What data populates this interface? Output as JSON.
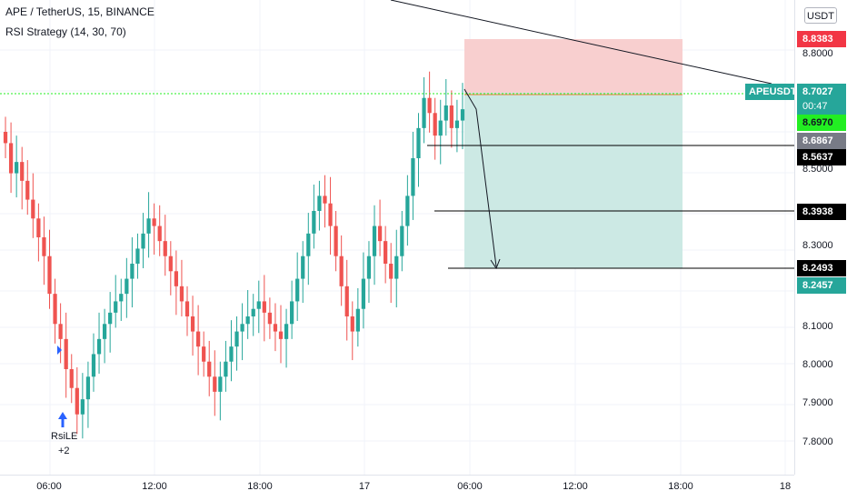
{
  "header": {
    "symbol_line": "APE / TetherUS, 15, BINANCE",
    "strategy_line": "RSI Strategy (14, 30, 70)"
  },
  "currency": "USDT",
  "symbol_badge": "APEUSDT",
  "price_ticks": [
    "8.8000",
    "8.5000",
    "8.3000",
    "8.1000",
    "8.0000",
    "7.9000",
    "7.8000"
  ],
  "price_labels": {
    "stop": {
      "value": "8.8383",
      "color": "#f23645"
    },
    "last": {
      "value": "8.7027",
      "color": "#26a69a"
    },
    "countdown": "00:47",
    "green": {
      "value": "8.6970",
      "color": "#22ee22"
    },
    "gray": {
      "value": "8.6867",
      "color": "#787b86"
    },
    "level1": {
      "value": "8.5637",
      "color": "#000000"
    },
    "level2": {
      "value": "8.3938",
      "color": "#000000"
    },
    "level3": {
      "value": "8.2493",
      "color": "#000000"
    },
    "target": {
      "value": "8.2457",
      "color": "#26a69a"
    }
  },
  "time_ticks": [
    "06:00",
    "12:00",
    "18:00",
    "17",
    "06:00",
    "12:00",
    "18:00",
    "18"
  ],
  "signal": {
    "label": "RsiLE",
    "count": "+2"
  },
  "colors": {
    "up": "#26a69a",
    "down": "#ef5350",
    "stop_zone": "#f8cfcf",
    "target_zone": "#cce9e4"
  },
  "chart_data": {
    "type": "candlestick",
    "title": "APE / TetherUS, 15, BINANCE",
    "ylim": [
      7.72,
      8.98
    ],
    "closes": [
      8.6,
      8.52,
      8.55,
      8.5,
      8.45,
      8.4,
      8.35,
      8.3,
      8.2,
      8.12,
      8.08,
      8.0,
      7.95,
      7.88,
      7.92,
      7.98,
      8.04,
      8.08,
      8.12,
      8.15,
      8.18,
      8.2,
      8.24,
      8.28,
      8.32,
      8.36,
      8.4,
      8.38,
      8.34,
      8.3,
      8.26,
      8.22,
      8.18,
      8.14,
      8.1,
      8.06,
      8.02,
      7.98,
      7.94,
      7.98,
      8.02,
      8.06,
      8.1,
      8.12,
      8.14,
      8.16,
      8.18,
      8.15,
      8.12,
      8.1,
      8.08,
      8.12,
      8.18,
      8.24,
      8.3,
      8.36,
      8.42,
      8.46,
      8.44,
      8.38,
      8.3,
      8.22,
      8.14,
      8.1,
      8.16,
      8.24,
      8.3,
      8.38,
      8.34,
      8.28,
      8.24,
      8.3,
      8.38,
      8.46,
      8.56,
      8.64,
      8.72,
      8.68,
      8.62,
      8.66,
      8.7,
      8.64,
      8.66,
      8.69
    ]
  }
}
